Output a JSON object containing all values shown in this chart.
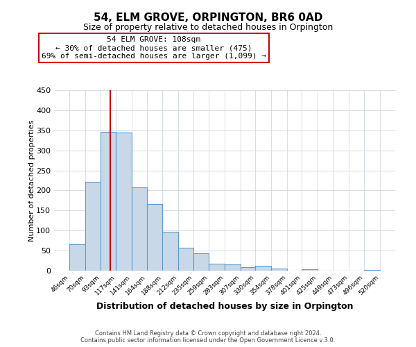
{
  "title": "54, ELM GROVE, ORPINGTON, BR6 0AD",
  "subtitle": "Size of property relative to detached houses in Orpington",
  "xlabel": "Distribution of detached houses by size in Orpington",
  "ylabel": "Number of detached properties",
  "bin_edges": [
    46,
    70,
    93,
    117,
    141,
    164,
    188,
    212,
    235,
    259,
    283,
    307,
    330,
    354,
    378,
    401,
    425,
    449,
    473,
    496,
    520
  ],
  "bar_heights": [
    65,
    222,
    346,
    344,
    208,
    166,
    97,
    57,
    43,
    17,
    15,
    8,
    12,
    5,
    0,
    3,
    0,
    0,
    0,
    2
  ],
  "bar_color": "#c8d8e8",
  "bar_edge_color": "#5b9bd5",
  "property_size": 108,
  "vline_color": "#cc0000",
  "annotation_line1": "54 ELM GROVE: 108sqm",
  "annotation_line2": "← 30% of detached houses are smaller (475)",
  "annotation_line3": "69% of semi-detached houses are larger (1,099) →",
  "annotation_box_color": "#ffffff",
  "annotation_box_edge": "#cc0000",
  "ylim": [
    0,
    450
  ],
  "grid_color": "#d0d8e0",
  "footer_line1": "Contains HM Land Registry data © Crown copyright and database right 2024.",
  "footer_line2": "Contains public sector information licensed under the Open Government Licence v.3.0.",
  "bg_color": "#ffffff",
  "tick_labels": [
    "46sqm",
    "70sqm",
    "93sqm",
    "117sqm",
    "141sqm",
    "164sqm",
    "188sqm",
    "212sqm",
    "235sqm",
    "259sqm",
    "283sqm",
    "307sqm",
    "330sqm",
    "354sqm",
    "378sqm",
    "401sqm",
    "425sqm",
    "449sqm",
    "473sqm",
    "496sqm",
    "520sqm"
  ],
  "yticks": [
    0,
    50,
    100,
    150,
    200,
    250,
    300,
    350,
    400,
    450
  ]
}
